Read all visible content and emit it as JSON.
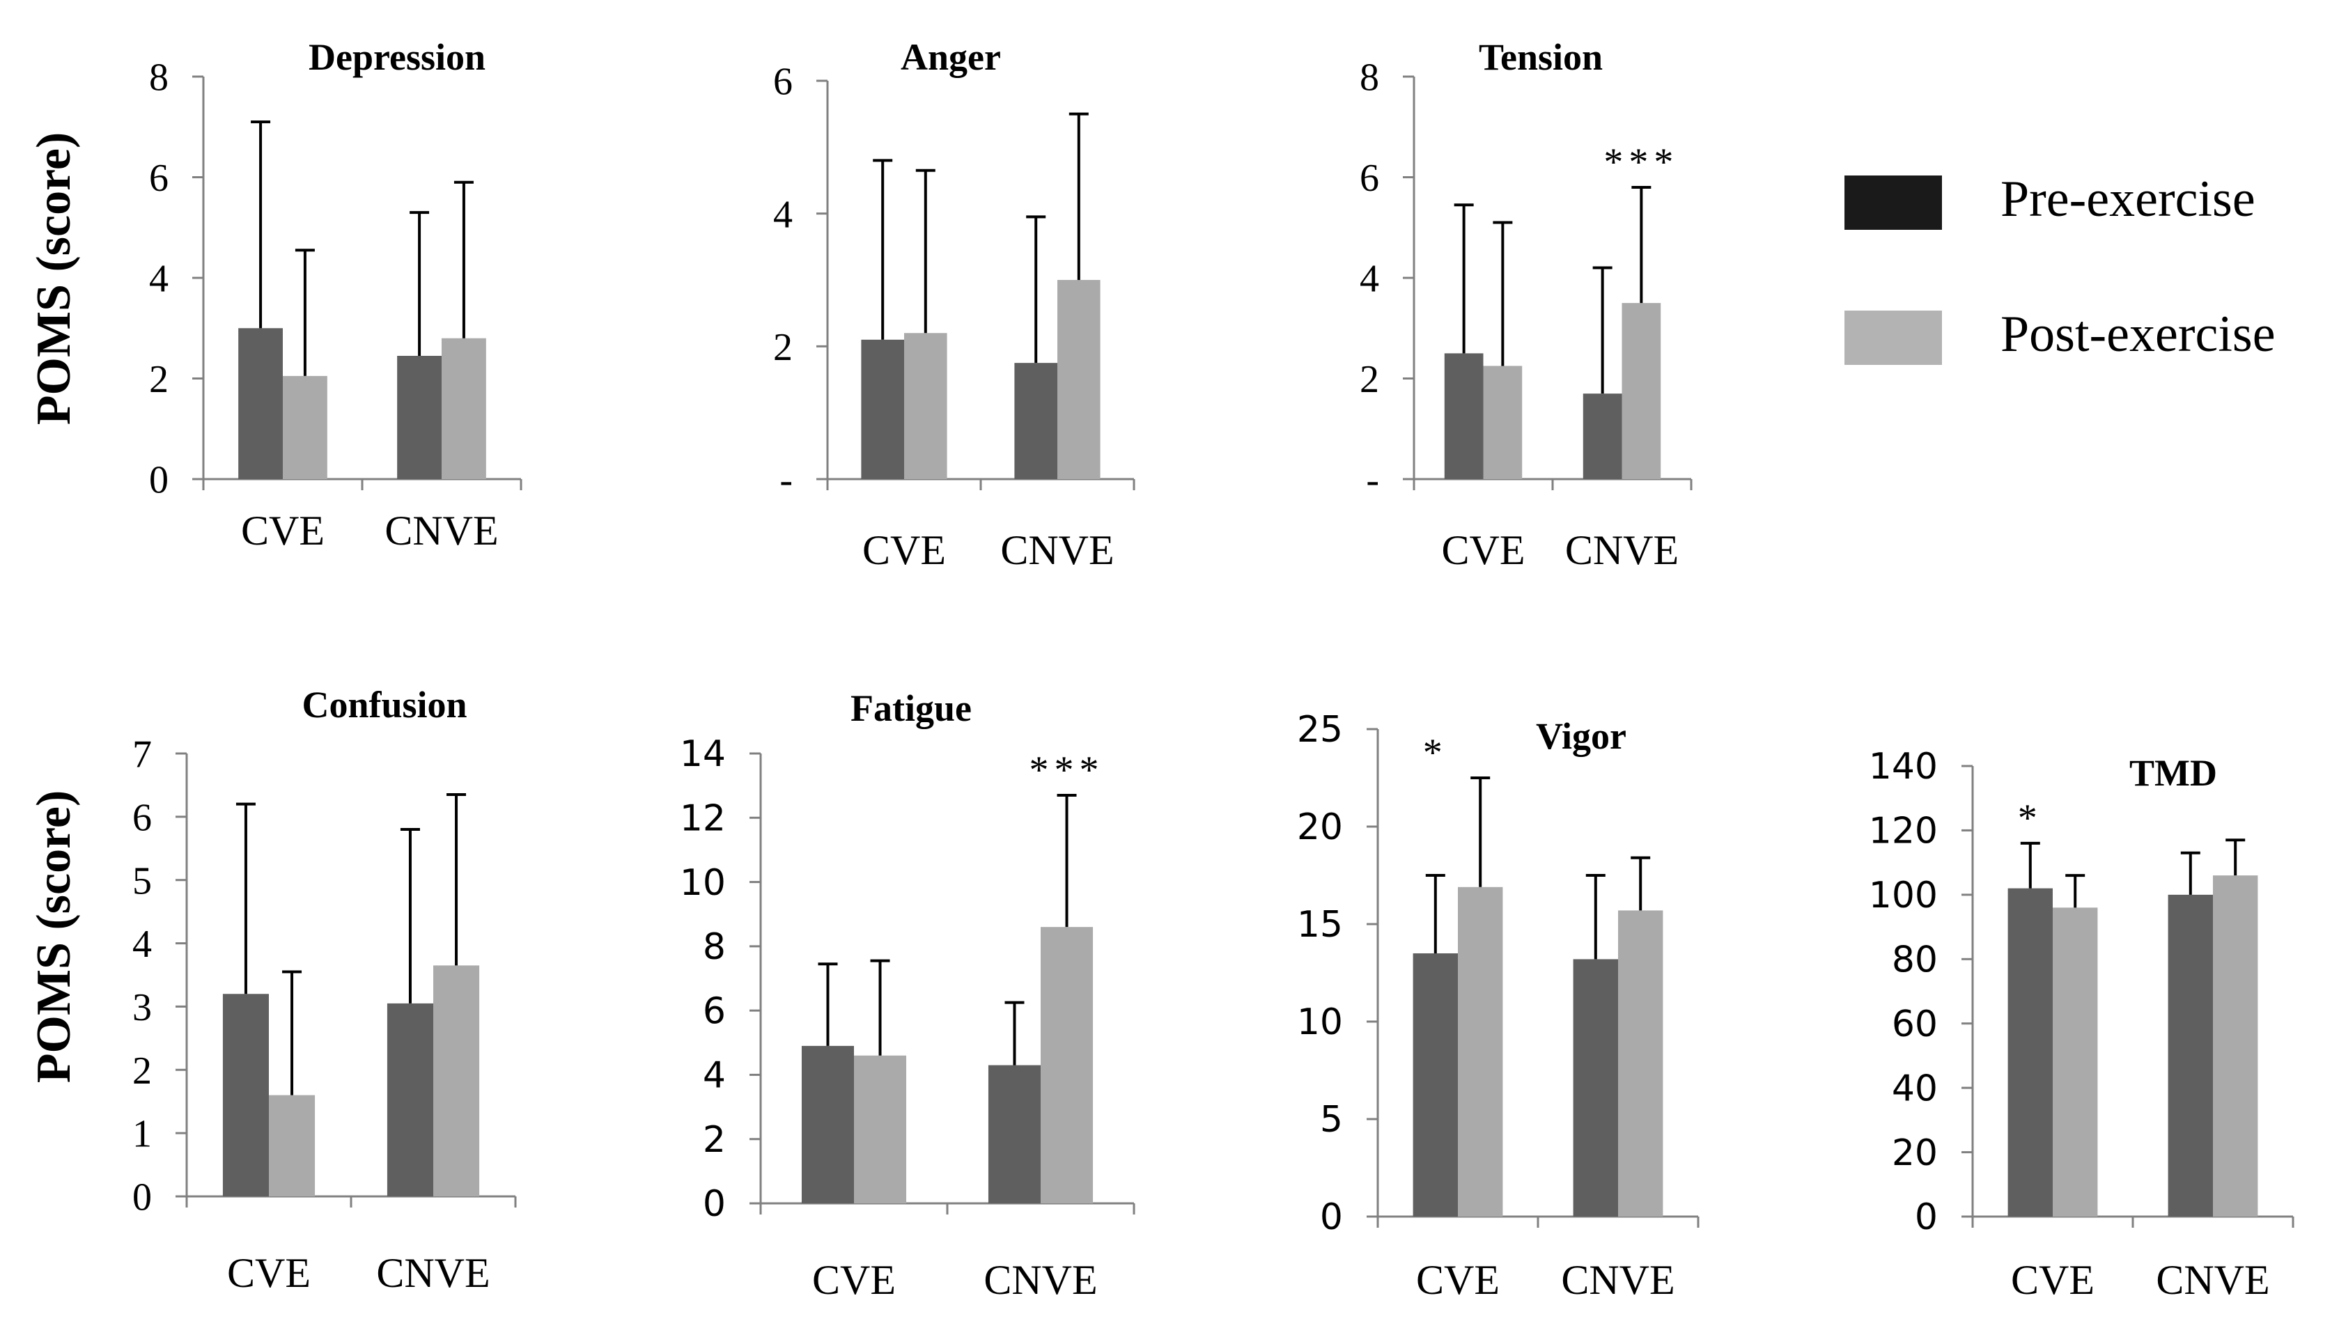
{
  "figure": {
    "ylabel_top": "POMS (score)",
    "ylabel_bottom": "POMS (score)",
    "colors": {
      "pre": "#5f5f5f",
      "post": "#aaaaaa",
      "legend_pre": "#1a1a1a",
      "legend_post": "#b3b3b3",
      "axis": "#808080",
      "text": "#000000"
    }
  },
  "legend": {
    "items": [
      {
        "label": "Pre-exercise",
        "color": "#1a1a1a"
      },
      {
        "label": "Post-exercise",
        "color": "#b3b3b3"
      }
    ]
  },
  "chart_data": [
    {
      "type": "bar",
      "title": "Depression",
      "categories": [
        "CVE",
        "CNVE"
      ],
      "ylim": [
        0,
        8
      ],
      "yticks": [
        "0",
        "2",
        "4",
        "6",
        "8"
      ],
      "series": [
        {
          "name": "Pre-exercise",
          "values": [
            3.0,
            2.45
          ],
          "errors": [
            4.1,
            2.85
          ]
        },
        {
          "name": "Post-exercise",
          "values": [
            2.05,
            2.8
          ],
          "errors": [
            2.5,
            3.1
          ]
        }
      ],
      "annotations": []
    },
    {
      "type": "bar",
      "title": "Anger",
      "categories": [
        "CVE",
        "CNVE"
      ],
      "ylim": [
        0,
        6
      ],
      "yticks": [
        "-",
        "2",
        "4",
        "6"
      ],
      "series": [
        {
          "name": "Pre-exercise",
          "values": [
            2.1,
            1.75
          ],
          "errors": [
            2.7,
            2.2
          ]
        },
        {
          "name": "Post-exercise",
          "values": [
            2.2,
            3.0
          ],
          "errors": [
            2.45,
            2.5
          ]
        }
      ],
      "annotations": []
    },
    {
      "type": "bar",
      "title": "Tension",
      "categories": [
        "CVE",
        "CNVE"
      ],
      "ylim": [
        0,
        8
      ],
      "yticks": [
        "-",
        "2",
        "4",
        "6",
        "8"
      ],
      "series": [
        {
          "name": "Pre-exercise",
          "values": [
            2.5,
            1.7
          ],
          "errors": [
            2.95,
            2.5
          ]
        },
        {
          "name": "Post-exercise",
          "values": [
            2.25,
            3.5
          ],
          "errors": [
            2.85,
            2.3
          ]
        }
      ],
      "annotations": [
        {
          "text": "***",
          "category": 1
        }
      ]
    },
    {
      "type": "bar",
      "title": "Confusion",
      "categories": [
        "CVE",
        "CNVE"
      ],
      "ylim": [
        0,
        7
      ],
      "yticks": [
        "0",
        "1",
        "2",
        "3",
        "4",
        "5",
        "6",
        "7"
      ],
      "series": [
        {
          "name": "Pre-exercise",
          "values": [
            3.2,
            3.05
          ],
          "errors": [
            3.0,
            2.75
          ]
        },
        {
          "name": "Post-exercise",
          "values": [
            1.6,
            3.65
          ],
          "errors": [
            1.95,
            2.7
          ]
        }
      ],
      "annotations": []
    },
    {
      "type": "bar",
      "title": "Fatigue",
      "categories": [
        "CVE",
        "CNVE"
      ],
      "ylim": [
        0,
        14
      ],
      "yticks": [
        "0",
        "2",
        "4",
        "6",
        "8",
        "10",
        "12",
        "14"
      ],
      "series": [
        {
          "name": "Pre-exercise",
          "values": [
            4.9,
            4.3
          ],
          "errors": [
            2.55,
            1.95
          ]
        },
        {
          "name": "Post-exercise",
          "values": [
            4.6,
            8.6
          ],
          "errors": [
            2.95,
            4.1
          ]
        }
      ],
      "annotations": [
        {
          "text": "***",
          "category": 1
        }
      ]
    },
    {
      "type": "bar",
      "title": "Vigor",
      "categories": [
        "CVE",
        "CNVE"
      ],
      "ylim": [
        0,
        25
      ],
      "yticks": [
        "0",
        "5",
        "10",
        "15",
        "20",
        "25"
      ],
      "series": [
        {
          "name": "Pre-exercise",
          "values": [
            13.5,
            13.2
          ],
          "errors": [
            4.0,
            4.3
          ]
        },
        {
          "name": "Post-exercise",
          "values": [
            16.9,
            15.7
          ],
          "errors": [
            5.6,
            2.7
          ]
        }
      ],
      "annotations": [
        {
          "text": "*",
          "category": 0
        }
      ]
    },
    {
      "type": "bar",
      "title": "TMD",
      "categories": [
        "CVE",
        "CNVE"
      ],
      "ylim": [
        0,
        140
      ],
      "yticks": [
        "0",
        "20",
        "40",
        "60",
        "80",
        "100",
        "120",
        "140"
      ],
      "series": [
        {
          "name": "Pre-exercise",
          "values": [
            102,
            100
          ],
          "errors": [
            14,
            13
          ]
        },
        {
          "name": "Post-exercise",
          "values": [
            96,
            106
          ],
          "errors": [
            10,
            11
          ]
        }
      ],
      "annotations": [
        {
          "text": "*",
          "category": 0
        }
      ]
    }
  ]
}
